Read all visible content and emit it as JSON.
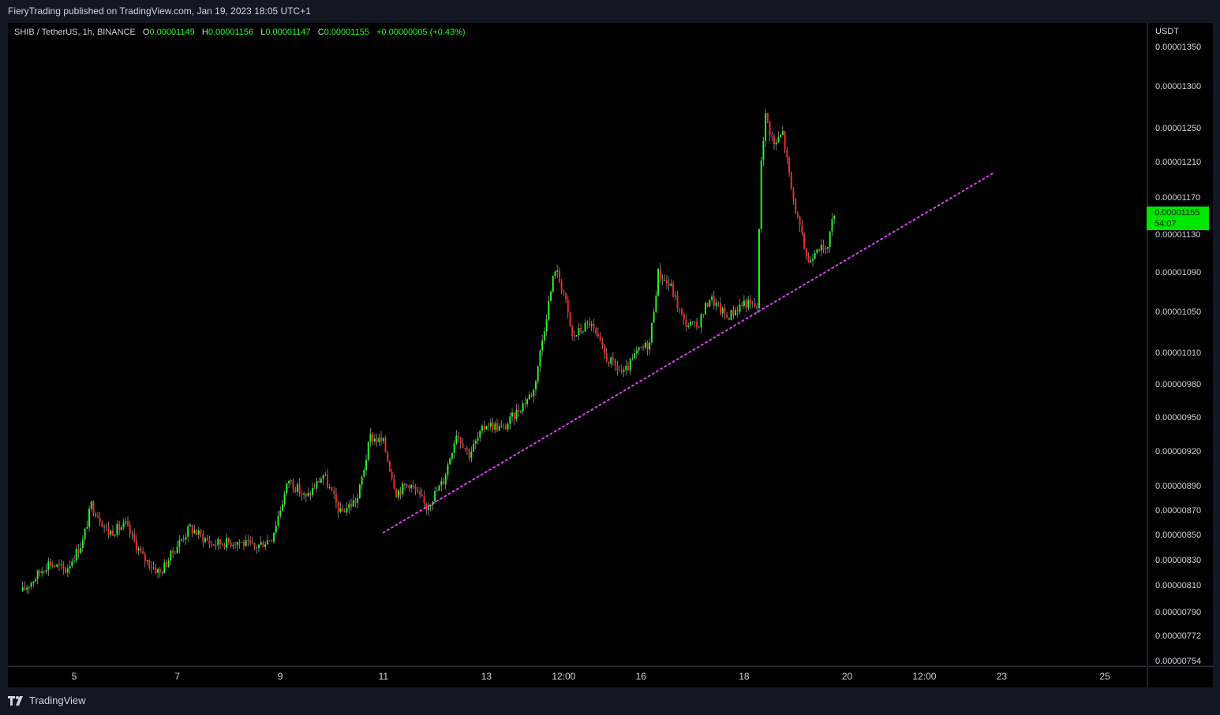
{
  "header": {
    "published_by": "FieryTrading published on TradingView.com, Jan 19, 2023 18:05 UTC+1"
  },
  "legend": {
    "symbol": "SHIB / TetherUS, 1h, BINANCE",
    "o_key": "O",
    "o_val": "0.00001149",
    "h_key": "H",
    "h_val": "0.00001156",
    "l_key": "L",
    "l_val": "0.00001147",
    "c_key": "C",
    "c_val": "0.00001155",
    "change": "+0.00000005 (+0.43%)"
  },
  "price_axis": {
    "unit": "USDT",
    "last_price": "0.00001155",
    "countdown": "54:07"
  },
  "footer": {
    "brand": "TradingView"
  },
  "colors": {
    "up": "#22ff22",
    "down": "#ff2a2a",
    "trendline": "#e040fb",
    "background": "#000000",
    "frame": "#131722",
    "last_price_bg": "#00e600"
  },
  "icons": {
    "brand_logo": "tradingview-logo-icon"
  },
  "chart_data": {
    "type": "candlestick",
    "title": "SHIB / TetherUS, 1h, BINANCE",
    "y_scale": "log",
    "ylim": [
      7.5e-06,
      1.36e-05
    ],
    "y_ticks": [
      "0.00001350",
      "0.00001300",
      "0.00001250",
      "0.00001210",
      "0.00001170",
      "0.00001130",
      "0.00001090",
      "0.00001050",
      "0.00001010",
      "0.00000980",
      "0.00000950",
      "0.00000920",
      "0.00000890",
      "0.00000870",
      "0.00000850",
      "0.00000830",
      "0.00000810",
      "0.00000790",
      "0.00000772",
      "0.00000754"
    ],
    "x_ticks": [
      "5",
      "7",
      "9",
      "11",
      "13",
      "12:00",
      "16",
      "18",
      "20",
      "12:00",
      "23",
      "25"
    ],
    "price_path": [
      {
        "date": "Jan 4 00:00",
        "close": 8.06e-06
      },
      {
        "date": "Jan 4 12:00",
        "close": 8.28e-06
      },
      {
        "date": "Jan 4 20:00",
        "close": 8.22e-06
      },
      {
        "date": "Jan 5 04:00",
        "close": 8.45e-06
      },
      {
        "date": "Jan 5 08:00",
        "close": 8.75e-06
      },
      {
        "date": "Jan 5 16:00",
        "close": 8.52e-06
      },
      {
        "date": "Jan 6 00:00",
        "close": 8.58e-06
      },
      {
        "date": "Jan 6 08:00",
        "close": 8.32e-06
      },
      {
        "date": "Jan 6 16:00",
        "close": 8.2e-06
      },
      {
        "date": "Jan 7 00:00",
        "close": 8.42e-06
      },
      {
        "date": "Jan 7 06:00",
        "close": 8.56e-06
      },
      {
        "date": "Jan 7 16:00",
        "close": 8.43e-06
      },
      {
        "date": "Jan 8 04:00",
        "close": 8.45e-06
      },
      {
        "date": "Jan 8 12:00",
        "close": 8.4e-06
      },
      {
        "date": "Jan 8 20:00",
        "close": 8.48e-06
      },
      {
        "date": "Jan 9 04:00",
        "close": 8.96e-06
      },
      {
        "date": "Jan 9 12:00",
        "close": 8.8e-06
      },
      {
        "date": "Jan 9 20:00",
        "close": 9e-06
      },
      {
        "date": "Jan 10 04:00",
        "close": 8.68e-06
      },
      {
        "date": "Jan 10 12:00",
        "close": 8.8e-06
      },
      {
        "date": "Jan 10 18:00",
        "close": 9.33e-06
      },
      {
        "date": "Jan 11 00:00",
        "close": 9.28e-06
      },
      {
        "date": "Jan 11 06:00",
        "close": 8.85e-06
      },
      {
        "date": "Jan 11 12:00",
        "close": 8.93e-06
      },
      {
        "date": "Jan 11 20:00",
        "close": 8.73e-06
      },
      {
        "date": "Jan 12 04:00",
        "close": 8.95e-06
      },
      {
        "date": "Jan 12 10:00",
        "close": 9.37e-06
      },
      {
        "date": "Jan 12 16:00",
        "close": 9.18e-06
      },
      {
        "date": "Jan 13 00:00",
        "close": 9.45e-06
      },
      {
        "date": "Jan 13 08:00",
        "close": 9.4e-06
      },
      {
        "date": "Jan 13 16:00",
        "close": 9.6e-06
      },
      {
        "date": "Jan 13 22:00",
        "close": 9.75e-06
      },
      {
        "date": "Jan 14 04:00",
        "close": 1.048e-05
      },
      {
        "date": "Jan 14 08:00",
        "close": 1.095e-05
      },
      {
        "date": "Jan 14 12:00",
        "close": 1.07e-05
      },
      {
        "date": "Jan 14 16:00",
        "close": 1.025e-05
      },
      {
        "date": "Jan 15 00:00",
        "close": 1.04e-05
      },
      {
        "date": "Jan 15 08:00",
        "close": 1.005e-05
      },
      {
        "date": "Jan 15 16:00",
        "close": 9.9e-06
      },
      {
        "date": "Jan 15 22:00",
        "close": 1.01e-05
      },
      {
        "date": "Jan 16 04:00",
        "close": 1.02e-05
      },
      {
        "date": "Jan 16 08:00",
        "close": 1.09e-05
      },
      {
        "date": "Jan 16 14:00",
        "close": 1.075e-05
      },
      {
        "date": "Jan 16 20:00",
        "close": 1.04e-05
      },
      {
        "date": "Jan 17 02:00",
        "close": 1.035e-05
      },
      {
        "date": "Jan 17 08:00",
        "close": 1.065e-05
      },
      {
        "date": "Jan 17 16:00",
        "close": 1.045e-05
      },
      {
        "date": "Jan 18 00:00",
        "close": 1.06e-05
      },
      {
        "date": "Jan 18 06:00",
        "close": 1.055e-05
      },
      {
        "date": "Jan 18 08:00",
        "close": 1.215e-05
      },
      {
        "date": "Jan 18 10:00",
        "close": 1.265e-05
      },
      {
        "date": "Jan 18 14:00",
        "close": 1.23e-05
      },
      {
        "date": "Jan 18 18:00",
        "close": 1.245e-05
      },
      {
        "date": "Jan 18 22:00",
        "close": 1.18e-05
      },
      {
        "date": "Jan 19 02:00",
        "close": 1.135e-05
      },
      {
        "date": "Jan 19 06:00",
        "close": 1.1e-05
      },
      {
        "date": "Jan 19 10:00",
        "close": 1.12e-05
      },
      {
        "date": "Jan 19 14:00",
        "close": 1.11e-05
      },
      {
        "date": "Jan 19 18:00",
        "close": 1.155e-05
      }
    ],
    "trendline": {
      "style": "dotted",
      "start": {
        "date": "Jan 11 00:00",
        "price": 8.52e-06
      },
      "end": {
        "date": "Jan 22 20:00",
        "price": 1.198e-05
      }
    },
    "last": {
      "price": 1.155e-05,
      "countdown": "54:07"
    }
  }
}
